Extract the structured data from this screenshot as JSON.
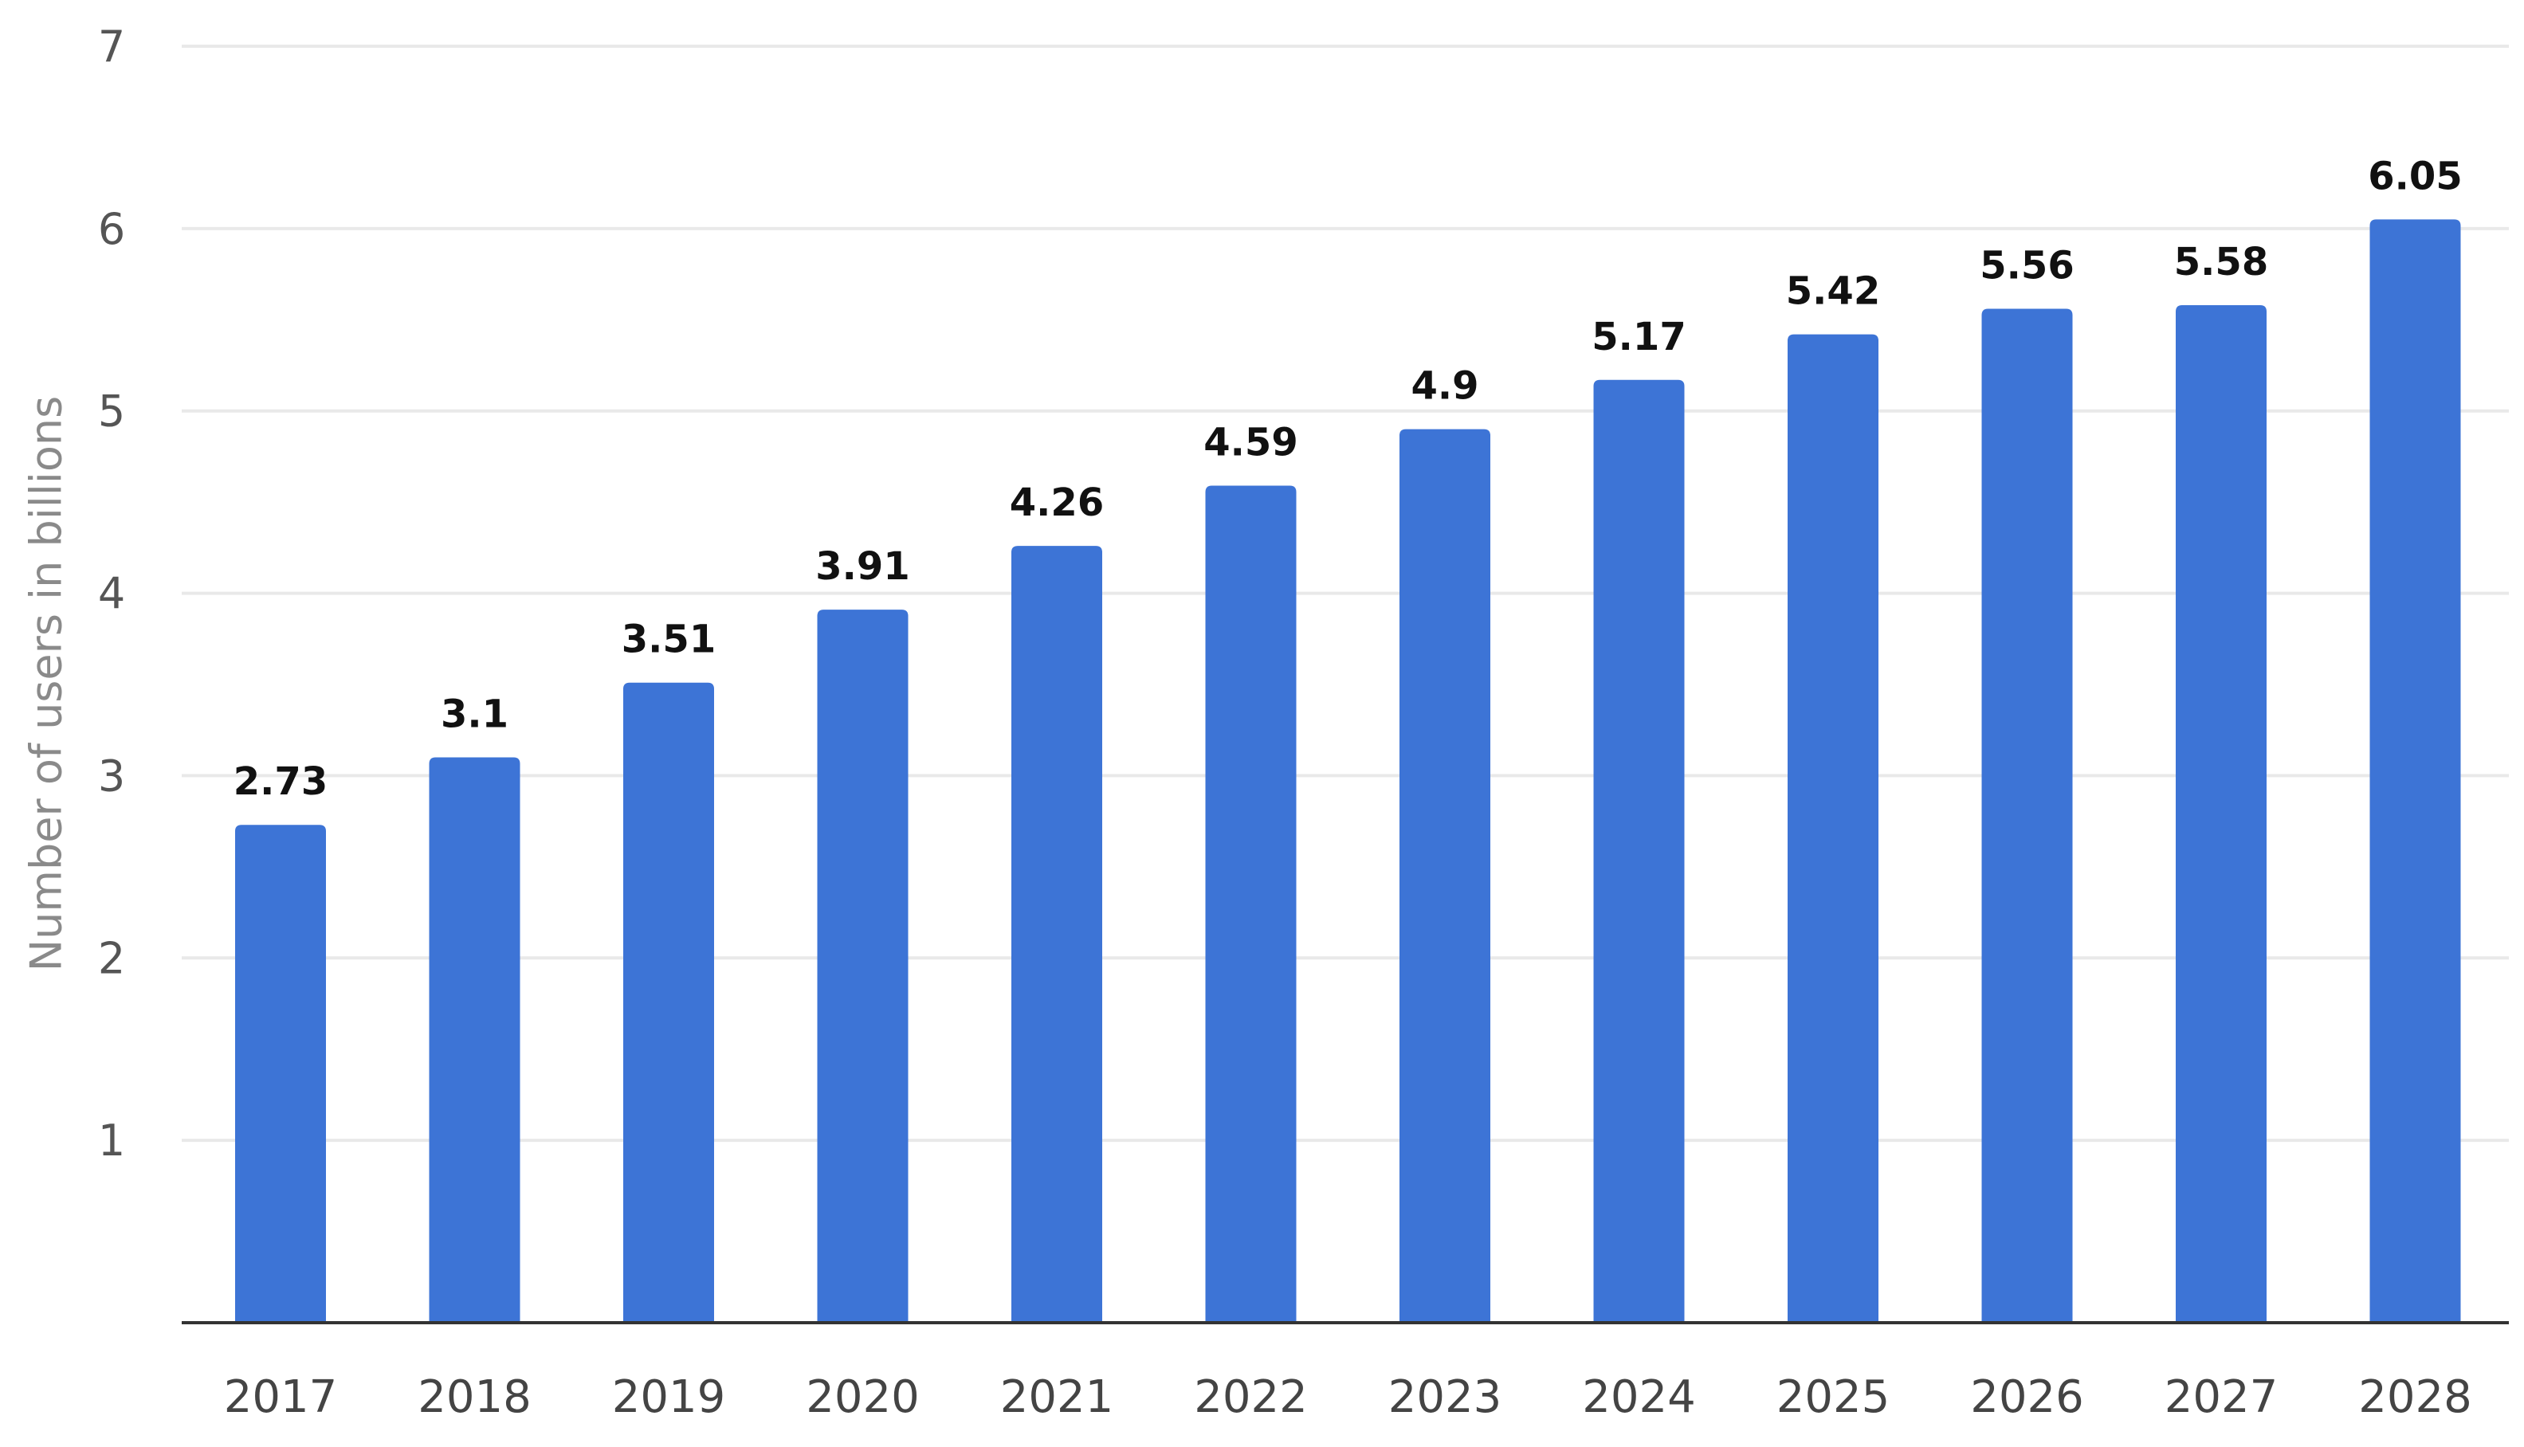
{
  "chart_data": {
    "type": "bar",
    "title": "",
    "xlabel": "",
    "ylabel": "Number of users in billions",
    "categories": [
      "2017",
      "2018",
      "2019",
      "2020",
      "2021",
      "2022",
      "2023",
      "2024",
      "2025",
      "2026",
      "2027",
      "2028"
    ],
    "values": [
      2.73,
      3.1,
      3.51,
      3.91,
      4.26,
      4.59,
      4.9,
      5.17,
      5.42,
      5.56,
      5.58,
      6.05
    ],
    "value_labels": [
      "2.73",
      "3.1",
      "3.51",
      "3.91",
      "4.26",
      "4.59",
      "4.9",
      "5.17",
      "5.42",
      "5.56",
      "5.58",
      "6.05"
    ],
    "y_ticks": [
      1,
      2,
      3,
      4,
      5,
      6,
      7
    ],
    "ylim": [
      0,
      7
    ],
    "grid": true,
    "legend": "none",
    "bar_color": "#3d74d6"
  }
}
